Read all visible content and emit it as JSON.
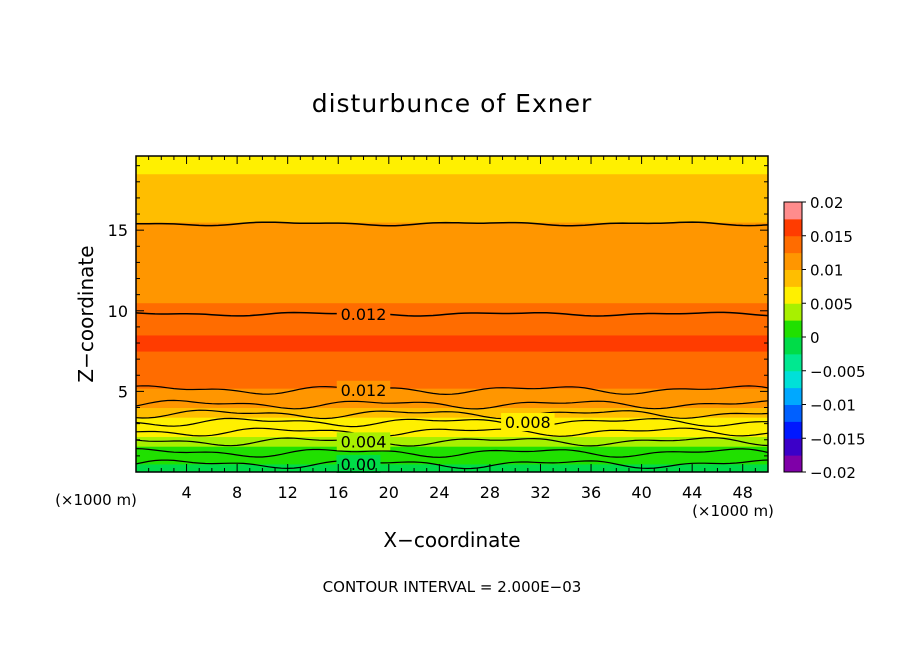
{
  "chart_data": {
    "type": "heatmap",
    "title": "disturbunce of Exner",
    "xlabel": "X−coordinate",
    "ylabel": "Z−coordinate",
    "x_unit_left": "(×1000 m)",
    "x_unit_right": "(×1000 m)",
    "xlim": [
      0,
      50
    ],
    "ylim": [
      0,
      19.6
    ],
    "xticks": [
      4,
      8,
      12,
      16,
      20,
      24,
      28,
      32,
      36,
      40,
      44,
      48
    ],
    "yticks": [
      5,
      10,
      15
    ],
    "contour_interval_text": "CONTOUR INTERVAL = 2.000E−03",
    "colorbar": {
      "range": [
        -0.02,
        0.02
      ],
      "tick_labels": [
        "0.02",
        "0.015",
        "0.01",
        "0.005",
        "0",
        "−0.005",
        "−0.01",
        "−0.015",
        "−0.02"
      ],
      "tick_values": [
        0.02,
        0.015,
        0.01,
        0.005,
        0,
        -0.005,
        -0.01,
        -0.015,
        -0.02
      ]
    },
    "vertical_profile": {
      "z": [
        0.0,
        0.5,
        1.0,
        1.6,
        2.2,
        2.8,
        3.4,
        4.0,
        4.6,
        5.2,
        5.8,
        6.5,
        7.5,
        8.5,
        9.5,
        10.5,
        11.5,
        12.5,
        13.5,
        14.5,
        15.5,
        16.5,
        17.5,
        18.5,
        19.6
      ],
      "value": [
        -0.001,
        0.0,
        0.001,
        0.003,
        0.004,
        0.006,
        0.007,
        0.009,
        0.011,
        0.012,
        0.0135,
        0.0145,
        0.0152,
        0.0148,
        0.0138,
        0.0125,
        0.012,
        0.0115,
        0.0108,
        0.0102,
        0.0098,
        0.009,
        0.0082,
        0.0076,
        0.007
      ]
    },
    "contour_labels": [
      {
        "text": "0.012",
        "x": 18,
        "z": 9.8
      },
      {
        "text": "0.012",
        "x": 18,
        "z": 5.1
      },
      {
        "text": "0.008",
        "x": 31,
        "z": 3.1
      },
      {
        "text": "0.004",
        "x": 18,
        "z": 1.9
      },
      {
        "text": "0.00",
        "x": 17.6,
        "z": 0.5
      }
    ],
    "contour_z": [
      0.5,
      1.2,
      1.9,
      2.5,
      3.1,
      3.6,
      4.2,
      5.1,
      9.8,
      15.4
    ]
  }
}
